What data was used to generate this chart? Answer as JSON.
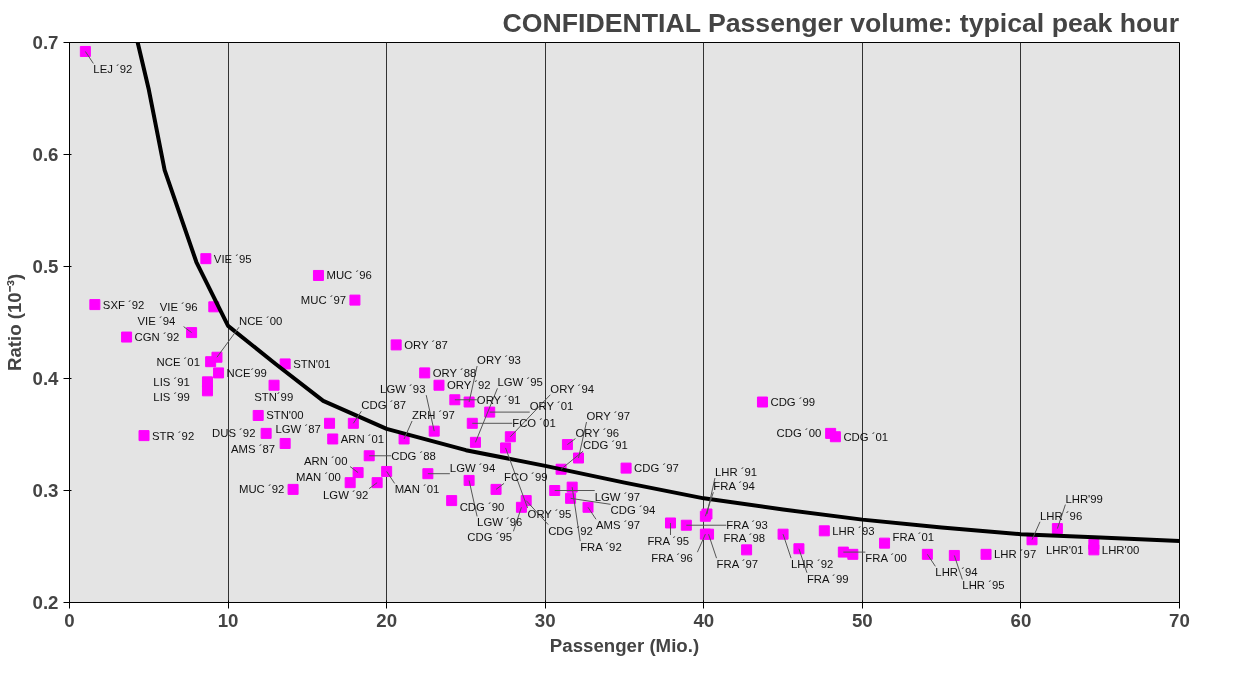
{
  "chart_data": {
    "type": "scatter",
    "title": "CONFIDENTIAL Passenger volume: typical peak hour",
    "xlabel": "Passenger (Mio.)",
    "ylabel": "Ratio (10⁻³)",
    "xlim": [
      0,
      70
    ],
    "ylim": [
      0.2,
      0.7
    ],
    "xticks": [
      0,
      10,
      20,
      30,
      40,
      50,
      60,
      70
    ],
    "yticks": [
      0.2,
      0.3,
      0.4,
      0.5,
      0.6,
      0.7
    ],
    "grid": "x",
    "series": [
      {
        "marker": "square",
        "color": "#ff00ff",
        "x": [
          1.0,
          8.6,
          15.7,
          18.0,
          1.6,
          9.1,
          3.6,
          7.7,
          20.6,
          9.3,
          8.9,
          9.4,
          8.7,
          8.7,
          13.6,
          12.9,
          11.9,
          12.4,
          4.7,
          13.6,
          14.1,
          16.4,
          16.6,
          17.9,
          18.2,
          18.9,
          17.7,
          19.4,
          20.0,
          21.1,
          22.4,
          23.3,
          24.3,
          25.2,
          26.5,
          25.4,
          27.8,
          23.0,
          27.5,
          31.4,
          32.1,
          25.6,
          31.0,
          31.7,
          30.6,
          32.7,
          31.6,
          38.9,
          40.1,
          37.9,
          40.1,
          35.1,
          22.6,
          24.1,
          25.2,
          26.9,
          28.8,
          28.5,
          43.7,
          48.0,
          48.3,
          40.2,
          40.3,
          42.7,
          46.0,
          45.0,
          47.6,
          48.8,
          49.4,
          51.4,
          54.1,
          55.8,
          57.8,
          60.7,
          62.3,
          64.6,
          64.6
        ],
        "values": [
          0.692,
          0.507,
          0.492,
          0.47,
          0.466,
          0.464,
          0.437,
          0.441,
          0.43,
          0.419,
          0.415,
          0.405,
          0.397,
          0.389,
          0.413,
          0.394,
          0.367,
          0.351,
          0.349,
          0.342,
          0.301,
          0.36,
          0.346,
          0.36,
          0.316,
          0.331,
          0.307,
          0.307,
          0.317,
          0.346,
          0.405,
          0.394,
          0.381,
          0.379,
          0.37,
          0.36,
          0.348,
          0.353,
          0.338,
          0.341,
          0.329,
          0.343,
          0.319,
          0.303,
          0.3,
          0.285,
          0.293,
          0.269,
          0.277,
          0.271,
          0.261,
          0.32,
          0.315,
          0.291,
          0.309,
          0.301,
          0.291,
          0.285,
          0.379,
          0.351,
          0.348,
          0.279,
          0.261,
          0.247,
          0.248,
          0.261,
          0.264,
          0.245,
          0.243,
          0.253,
          0.243,
          0.242,
          0.243,
          0.256,
          0.266,
          0.247,
          0.252
        ]
      },
      {
        "type": "line",
        "marker": "none",
        "color": "#000000",
        "x": [
          4.3,
          5,
          6,
          8,
          10,
          13,
          16,
          20,
          25,
          30,
          35,
          40,
          45,
          50,
          55,
          60,
          65,
          70
        ],
        "values": [
          0.7,
          0.658,
          0.586,
          0.504,
          0.447,
          0.413,
          0.38,
          0.355,
          0.336,
          0.322,
          0.307,
          0.293,
          0.283,
          0.274,
          0.267,
          0.261,
          0.258,
          0.255
        ]
      }
    ],
    "annotations": [
      {
        "text": "LEJ ´92",
        "x": 1.0,
        "y": 0.692
      },
      {
        "text": "VIE ´95",
        "x": 8.6,
        "y": 0.507
      },
      {
        "text": "MUC ´96",
        "x": 15.7,
        "y": 0.492
      },
      {
        "text": "MUC ´97",
        "x": 18.0,
        "y": 0.47
      },
      {
        "text": "SXF ´92",
        "x": 1.6,
        "y": 0.466
      },
      {
        "text": "VIE ´96",
        "x": 9.1,
        "y": 0.464
      },
      {
        "text": "CGN ´92",
        "x": 3.6,
        "y": 0.437
      },
      {
        "text": "VIE ´94",
        "x": 7.7,
        "y": 0.441
      },
      {
        "text": "ORY ´87",
        "x": 20.6,
        "y": 0.43
      },
      {
        "text": "NCE ´00",
        "x": 9.3,
        "y": 0.419
      },
      {
        "text": "NCE ´01",
        "x": 8.9,
        "y": 0.415
      },
      {
        "text": "NCE´99",
        "x": 9.4,
        "y": 0.405
      },
      {
        "text": "LIS ´91",
        "x": 8.7,
        "y": 0.397
      },
      {
        "text": "LIS ´99",
        "x": 8.7,
        "y": 0.389
      },
      {
        "text": "STN'01",
        "x": 13.6,
        "y": 0.413
      },
      {
        "text": "STN´99",
        "x": 12.9,
        "y": 0.394
      },
      {
        "text": "STN'00",
        "x": 11.9,
        "y": 0.367
      },
      {
        "text": "DUS ´92",
        "x": 12.4,
        "y": 0.351
      },
      {
        "text": "STR ´92",
        "x": 4.7,
        "y": 0.349
      },
      {
        "text": "AMS ´87",
        "x": 13.6,
        "y": 0.342
      },
      {
        "text": "MUC ´92",
        "x": 14.1,
        "y": 0.301
      },
      {
        "text": "LGW ´87",
        "x": 16.4,
        "y": 0.36
      },
      {
        "text": "ARN ´01",
        "x": 16.6,
        "y": 0.346
      },
      {
        "text": "CDG ´87",
        "x": 17.9,
        "y": 0.36
      },
      {
        "text": "ARN ´00",
        "x": 18.2,
        "y": 0.316
      },
      {
        "text": "CDG ´88",
        "x": 18.9,
        "y": 0.331
      },
      {
        "text": "MAN ´00",
        "x": 17.7,
        "y": 0.307
      },
      {
        "text": "LGW ´92",
        "x": 19.4,
        "y": 0.307
      },
      {
        "text": "MAN ´01",
        "x": 20.0,
        "y": 0.317
      },
      {
        "text": "ZRH ´97",
        "x": 21.1,
        "y": 0.346
      },
      {
        "text": "ORY ´88",
        "x": 22.4,
        "y": 0.405
      },
      {
        "text": "ORY ´92",
        "x": 23.3,
        "y": 0.394
      },
      {
        "text": "ORY ´91",
        "x": 24.3,
        "y": 0.381
      },
      {
        "text": "ORY ´93",
        "x": 25.2,
        "y": 0.379
      },
      {
        "text": "ORY ´01",
        "x": 26.5,
        "y": 0.37
      },
      {
        "text": "FCO ´01",
        "x": 25.4,
        "y": 0.36
      },
      {
        "text": "ORY ´94",
        "x": 27.8,
        "y": 0.348
      },
      {
        "text": "LGW ´93",
        "x": 23.0,
        "y": 0.353
      },
      {
        "text": "ORY ´95",
        "x": 27.5,
        "y": 0.338
      },
      {
        "text": "ORY ´96",
        "x": 31.4,
        "y": 0.341
      },
      {
        "text": "ORY ´97",
        "x": 32.1,
        "y": 0.329
      },
      {
        "text": "LGW ´95",
        "x": 25.6,
        "y": 0.343
      },
      {
        "text": "CDG ´91",
        "x": 31.0,
        "y": 0.319
      },
      {
        "text": "FRA ´92",
        "x": 31.7,
        "y": 0.303
      },
      {
        "text": "LGW ´97",
        "x": 30.6,
        "y": 0.3
      },
      {
        "text": "AMS ´97",
        "x": 32.7,
        "y": 0.285
      },
      {
        "text": "CDG ´94",
        "x": 31.6,
        "y": 0.293
      },
      {
        "text": "FRA ´93",
        "x": 38.9,
        "y": 0.269
      },
      {
        "text": "FRA ´94",
        "x": 40.1,
        "y": 0.277
      },
      {
        "text": "FRA ´95",
        "x": 37.9,
        "y": 0.271
      },
      {
        "text": "FRA ´96",
        "x": 40.1,
        "y": 0.261
      },
      {
        "text": "CDG ´97",
        "x": 35.1,
        "y": 0.32
      },
      {
        "text": "LGW ´94",
        "x": 22.6,
        "y": 0.315
      },
      {
        "text": "CDG ´90",
        "x": 24.1,
        "y": 0.291
      },
      {
        "text": "LGW ´96",
        "x": 25.2,
        "y": 0.309
      },
      {
        "text": "FCO ´99",
        "x": 26.9,
        "y": 0.301
      },
      {
        "text": "CDG ´92",
        "x": 28.8,
        "y": 0.291
      },
      {
        "text": "CDG ´95",
        "x": 28.5,
        "y": 0.285
      },
      {
        "text": "CDG ´99",
        "x": 43.7,
        "y": 0.379
      },
      {
        "text": "CDG ´00",
        "x": 48.0,
        "y": 0.351
      },
      {
        "text": "CDG ´01",
        "x": 48.3,
        "y": 0.348
      },
      {
        "text": "LHR ´91",
        "x": 40.2,
        "y": 0.279
      },
      {
        "text": "FRA ´97",
        "x": 40.3,
        "y": 0.261
      },
      {
        "text": "FRA ´98",
        "x": 42.7,
        "y": 0.247
      },
      {
        "text": "FRA ´99",
        "x": 46.0,
        "y": 0.248
      },
      {
        "text": "LHR ´92",
        "x": 45.0,
        "y": 0.261
      },
      {
        "text": "LHR ´93",
        "x": 47.6,
        "y": 0.264
      },
      {
        "text": "FRA ´00",
        "x": 48.8,
        "y": 0.245
      },
      {
        "text": "FRA ´01",
        "x": 51.4,
        "y": 0.253
      },
      {
        "text": "LHR ´94",
        "x": 54.1,
        "y": 0.243
      },
      {
        "text": "LHR ´95",
        "x": 55.8,
        "y": 0.242
      },
      {
        "text": "LHR ´97",
        "x": 57.8,
        "y": 0.243
      },
      {
        "text": "LHR ´96",
        "x": 60.7,
        "y": 0.256
      },
      {
        "text": "LHR'99",
        "x": 62.3,
        "y": 0.266
      },
      {
        "text": "LHR'00",
        "x": 64.6,
        "y": 0.247
      },
      {
        "text": "LHR'01",
        "x": 64.6,
        "y": 0.252
      }
    ]
  }
}
